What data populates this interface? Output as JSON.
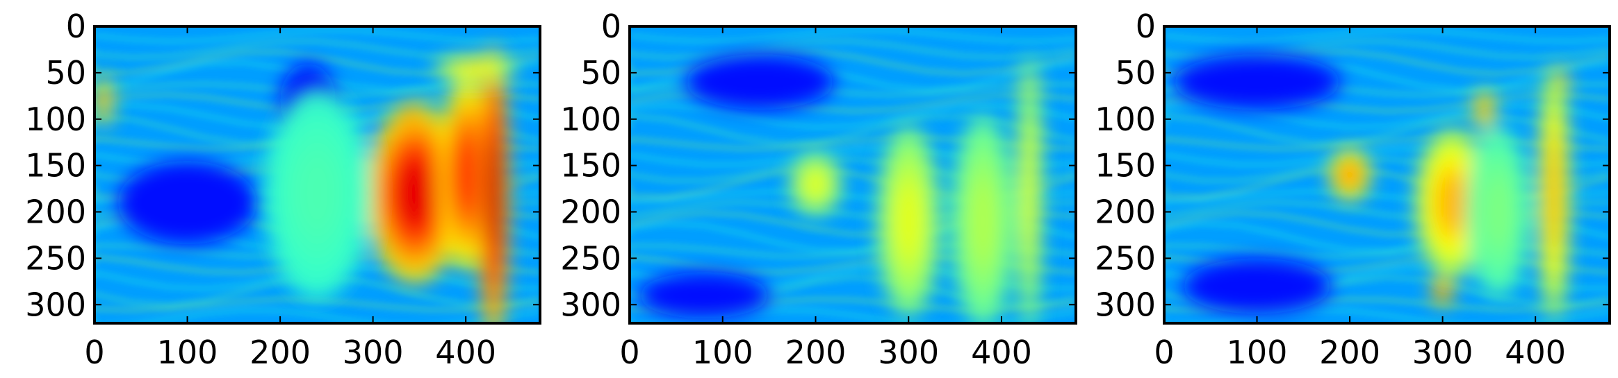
{
  "chart_data": [
    {
      "type": "heatmap",
      "name": "panel-1",
      "colormap": "jet",
      "xlim": [
        0,
        480
      ],
      "ylim": [
        320,
        0
      ],
      "xticks": [
        0,
        100,
        200,
        300,
        400
      ],
      "yticks": [
        0,
        50,
        100,
        150,
        200,
        250,
        300
      ],
      "hot_regions": [
        {
          "cx": 345,
          "cy": 180,
          "rx": 45,
          "ry": 85,
          "level": 0.9
        },
        {
          "cx": 400,
          "cy": 160,
          "rx": 25,
          "ry": 90,
          "level": 0.85
        },
        {
          "cx": 430,
          "cy": 180,
          "rx": 15,
          "ry": 140,
          "level": 0.95
        },
        {
          "cx": 340,
          "cy": 95,
          "rx": 8,
          "ry": 10,
          "level": 0.85
        },
        {
          "cx": 410,
          "cy": 45,
          "rx": 40,
          "ry": 12,
          "level": 0.65
        },
        {
          "cx": 10,
          "cy": 80,
          "rx": 8,
          "ry": 25,
          "level": 0.75
        },
        {
          "cx": 240,
          "cy": 180,
          "rx": 50,
          "ry": 100,
          "level": 0.45
        }
      ],
      "cold_regions": [
        {
          "cx": 100,
          "cy": 190,
          "rx": 75,
          "ry": 45
        },
        {
          "cx": 230,
          "cy": 80,
          "rx": 30,
          "ry": 40
        }
      ]
    },
    {
      "type": "heatmap",
      "name": "panel-2",
      "colormap": "jet",
      "xlim": [
        0,
        480
      ],
      "ylim": [
        320,
        0
      ],
      "xticks": [
        0,
        100,
        200,
        300,
        400
      ],
      "yticks": [
        0,
        50,
        100,
        150,
        200,
        250,
        300
      ],
      "hot_regions": [
        {
          "cx": 430,
          "cy": 65,
          "rx": 10,
          "ry": 12,
          "level": 0.9
        },
        {
          "cx": 435,
          "cy": 120,
          "rx": 8,
          "ry": 20,
          "level": 0.85
        },
        {
          "cx": 375,
          "cy": 145,
          "rx": 15,
          "ry": 10,
          "level": 0.75
        },
        {
          "cx": 300,
          "cy": 210,
          "rx": 30,
          "ry": 90,
          "level": 0.6
        },
        {
          "cx": 200,
          "cy": 170,
          "rx": 25,
          "ry": 30,
          "level": 0.6
        },
        {
          "cx": 380,
          "cy": 210,
          "rx": 30,
          "ry": 100,
          "level": 0.55
        },
        {
          "cx": 430,
          "cy": 180,
          "rx": 12,
          "ry": 130,
          "level": 0.6
        }
      ],
      "cold_regions": [
        {
          "cx": 140,
          "cy": 60,
          "rx": 80,
          "ry": 30
        },
        {
          "cx": 80,
          "cy": 290,
          "rx": 70,
          "ry": 25
        }
      ]
    },
    {
      "type": "heatmap",
      "name": "panel-3",
      "colormap": "jet",
      "xlim": [
        0,
        480
      ],
      "ylim": [
        320,
        0
      ],
      "xticks": [
        0,
        100,
        200,
        300,
        400
      ],
      "yticks": [
        0,
        50,
        100,
        150,
        200,
        250,
        300
      ],
      "hot_regions": [
        {
          "cx": 425,
          "cy": 60,
          "rx": 10,
          "ry": 12,
          "level": 0.85
        },
        {
          "cx": 345,
          "cy": 90,
          "rx": 10,
          "ry": 20,
          "level": 0.75
        },
        {
          "cx": 310,
          "cy": 190,
          "rx": 35,
          "ry": 70,
          "level": 0.7
        },
        {
          "cx": 300,
          "cy": 285,
          "rx": 10,
          "ry": 15,
          "level": 0.8
        },
        {
          "cx": 200,
          "cy": 160,
          "rx": 20,
          "ry": 25,
          "level": 0.75
        },
        {
          "cx": 420,
          "cy": 180,
          "rx": 15,
          "ry": 120,
          "level": 0.7
        },
        {
          "cx": 360,
          "cy": 200,
          "rx": 30,
          "ry": 80,
          "level": 0.5
        }
      ],
      "cold_regions": [
        {
          "cx": 100,
          "cy": 60,
          "rx": 90,
          "ry": 30
        },
        {
          "cx": 100,
          "cy": 280,
          "rx": 80,
          "ry": 30
        }
      ]
    }
  ]
}
